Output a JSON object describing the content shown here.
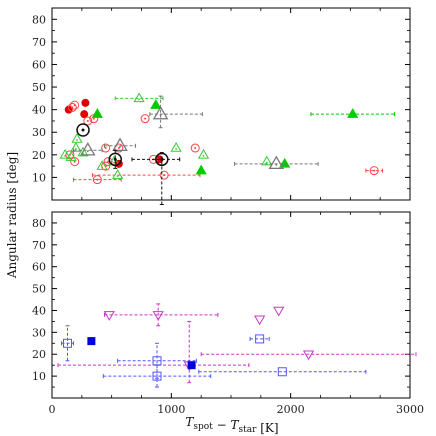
{
  "chart_data": [
    {
      "type": "scatter",
      "panel": "top",
      "xlabel": "",
      "ylabel": "Angular radius [deg]",
      "xlim": [
        0,
        3000
      ],
      "ylim": [
        0,
        85
      ],
      "xticks": [
        "0",
        "1000",
        "2000",
        "3000"
      ],
      "yticks": [
        "10",
        "20",
        "30",
        "40",
        "50",
        "60",
        "70",
        "80"
      ],
      "grid": false,
      "series": [
        {
          "marker": "filled-circle",
          "color": "#dd0000",
          "points": [
            {
              "x": 140,
              "y": 40
            },
            {
              "x": 270,
              "y": 38
            },
            {
              "x": 280,
              "y": 43
            },
            {
              "x": 560,
              "y": 16
            },
            {
              "x": 900,
              "y": 18
            }
          ]
        },
        {
          "marker": "open-circle-dot",
          "color": "#ff4444",
          "points": [
            {
              "x": 170,
              "y": 41
            },
            {
              "x": 190,
              "y": 42
            },
            {
              "x": 150,
              "y": 20
            },
            {
              "x": 190,
              "y": 17
            },
            {
              "x": 300,
              "y": 35
            },
            {
              "x": 350,
              "y": 36
            },
            {
              "x": 380,
              "y": 9,
              "xerr": [
                200,
                200
              ]
            },
            {
              "x": 450,
              "y": 15
            },
            {
              "x": 450,
              "y": 23
            },
            {
              "x": 470,
              "y": 17
            },
            {
              "x": 560,
              "y": 23
            },
            {
              "x": 780,
              "y": 36
            },
            {
              "x": 850,
              "y": 18
            },
            {
              "x": 940,
              "y": 11,
              "xerr": [
                600,
                300
              ]
            },
            {
              "x": 1200,
              "y": 23
            },
            {
              "x": 2700,
              "y": 13,
              "xerr": [
                70,
                70
              ]
            }
          ]
        },
        {
          "marker": "filled-triangle",
          "color": "#00cc00",
          "points": [
            {
              "x": 380,
              "y": 38
            },
            {
              "x": 870,
              "y": 42
            },
            {
              "x": 1250,
              "y": 13
            },
            {
              "x": 1950,
              "y": 16
            },
            {
              "x": 2520,
              "y": 38,
              "xerr": [
                350,
                350
              ]
            }
          ]
        },
        {
          "marker": "open-triangle",
          "color": "#33cc33",
          "points": [
            {
              "x": 110,
              "y": 20
            },
            {
              "x": 160,
              "y": 19
            },
            {
              "x": 200,
              "y": 23
            },
            {
              "x": 210,
              "y": 27
            },
            {
              "x": 260,
              "y": 21
            },
            {
              "x": 420,
              "y": 15
            },
            {
              "x": 520,
              "y": 17
            },
            {
              "x": 550,
              "y": 11
            },
            {
              "x": 730,
              "y": 45,
              "xerr": [
                200,
                200
              ]
            },
            {
              "x": 1040,
              "y": 23
            },
            {
              "x": 1270,
              "y": 20
            },
            {
              "x": 1800,
              "y": 17
            }
          ]
        },
        {
          "marker": "open-triangle-large",
          "color": "#777777",
          "points": [
            {
              "x": 300,
              "y": 22,
              "xerr": [
                120,
                120
              ]
            },
            {
              "x": 570,
              "y": 24,
              "xerr": [
                130,
                130
              ]
            },
            {
              "x": 910,
              "y": 38,
              "xerr": [
                90,
                350
              ],
              "yerr": [
                6,
                8
              ]
            },
            {
              "x": 1880,
              "y": 16,
              "xerr": [
                350,
                350
              ]
            }
          ]
        },
        {
          "marker": "target-circle",
          "color": "#111111",
          "points": [
            {
              "x": 260,
              "y": 31
            },
            {
              "x": 530,
              "y": 18,
              "yerr": [
                4,
                4
              ]
            },
            {
              "x": 920,
              "y": 18,
              "xerr": [
                250,
                150
              ],
              "yerr": [
                20,
                3
              ]
            }
          ]
        }
      ]
    },
    {
      "type": "scatter",
      "panel": "bottom",
      "xlabel": "T_spot − T_star [K]",
      "ylabel": "",
      "xlim": [
        0,
        3000
      ],
      "ylim": [
        0,
        85
      ],
      "xticks": [
        "0",
        "1000",
        "2000",
        "3000"
      ],
      "yticks": [
        "10",
        "20",
        "30",
        "40",
        "50",
        "60",
        "70",
        "80"
      ],
      "grid": false,
      "series": [
        {
          "marker": "open-down-triangle",
          "color": "#cc33cc",
          "points": [
            {
              "x": 480,
              "y": 38
            },
            {
              "x": 890,
              "y": 38,
              "xerr": [
                450,
                500
              ],
              "yerr": [
                5,
                5
              ]
            },
            {
              "x": 1150,
              "y": 15,
              "xerr": [
                1100,
                500
              ],
              "yerr": [
                8,
                20
              ]
            },
            {
              "x": 1740,
              "y": 36
            },
            {
              "x": 1900,
              "y": 40
            },
            {
              "x": 2150,
              "y": 20,
              "xerr": [
                900,
                900
              ]
            }
          ]
        },
        {
          "marker": "filled-square",
          "color": "#0000dd",
          "points": [
            {
              "x": 330,
              "y": 26
            },
            {
              "x": 1170,
              "y": 15
            }
          ]
        },
        {
          "marker": "open-square",
          "color": "#5555ff",
          "points": [
            {
              "x": 130,
              "y": 25,
              "xerr": [
                50,
                50
              ],
              "yerr": [
                8,
                8
              ]
            },
            {
              "x": 880,
              "y": 17,
              "xerr": [
                330,
                330
              ],
              "yerr": [
                8,
                8
              ]
            },
            {
              "x": 880,
              "y": 10,
              "xerr": [
                450,
                450
              ],
              "yerr": [
                5,
                5
              ]
            },
            {
              "x": 1740,
              "y": 27,
              "xerr": [
                80,
                80
              ]
            },
            {
              "x": 1930,
              "y": 12,
              "xerr": [
                700,
                700
              ]
            }
          ]
        }
      ]
    }
  ]
}
